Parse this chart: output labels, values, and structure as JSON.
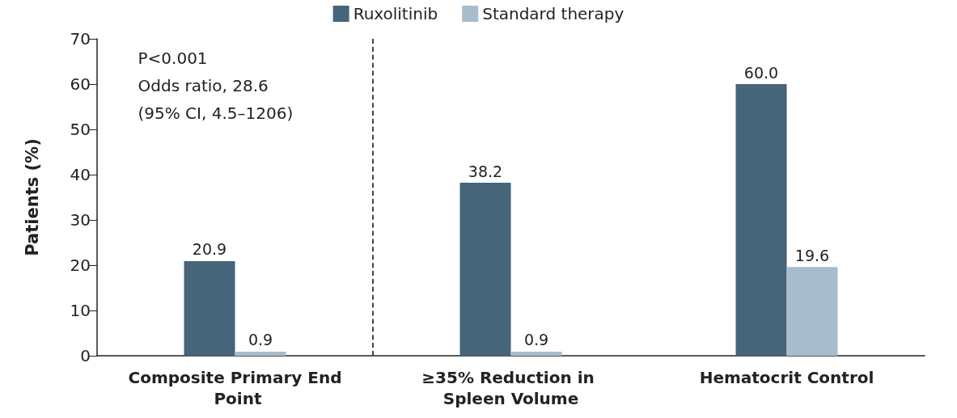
{
  "chart_data": {
    "type": "bar",
    "ylabel": "Patients (%)",
    "categories": [
      "Composite Primary End Point",
      "≥35% Reduction in Spleen Volume",
      "Hematocrit Control"
    ],
    "series": [
      {
        "name": "Ruxolitinib",
        "color": "#46647a",
        "values": [
          20.9,
          38.2,
          60.0
        ]
      },
      {
        "name": "Standard therapy",
        "color": "#a9bccb",
        "values": [
          0.9,
          0.9,
          19.6
        ]
      }
    ],
    "value_labels": [
      [
        "20.9",
        "38.2",
        "60.0"
      ],
      [
        "0.9",
        "0.9",
        "19.6"
      ]
    ],
    "ylim": [
      0,
      70
    ],
    "yticks": [
      0,
      10,
      20,
      30,
      40,
      50,
      60,
      70
    ],
    "grid": false,
    "legend": "top",
    "annotations": [
      "P<0.001",
      "Odds ratio, 28.6",
      "(95% CI, 4.5–1206)"
    ]
  }
}
